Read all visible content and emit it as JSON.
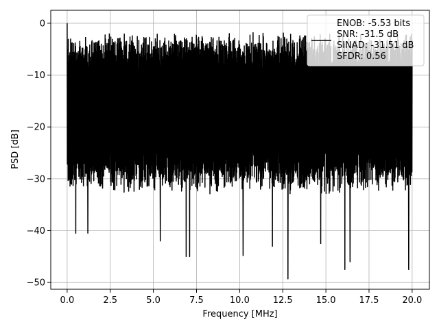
{
  "chart_data": {
    "type": "line",
    "title": "",
    "xlabel": "Frequency [MHz]",
    "ylabel": "PSD [dB]",
    "xlim": [
      -0.95,
      21.0
    ],
    "ylim": [
      -51.3,
      2.5
    ],
    "xticks": [
      0.0,
      2.5,
      5.0,
      7.5,
      10.0,
      12.5,
      15.0,
      17.5,
      20.0
    ],
    "xtick_labels": [
      "0.0",
      "2.5",
      "5.0",
      "7.5",
      "10.0",
      "12.5",
      "15.0",
      "17.5",
      "20.0"
    ],
    "yticks": [
      0,
      -10,
      -20,
      -30,
      -40,
      -50
    ],
    "ytick_labels": [
      "0",
      "−10",
      "−20",
      "−30",
      "−40",
      "−50"
    ],
    "grid": true,
    "legend_position": "top-right",
    "series": [
      {
        "name": "ENOB: -5.53 bits\nSNR: -31.5 dB\nSINAD: -31.51 dB\nSFDR: 0.56",
        "color": "#000000",
        "x_range": [
          0.0,
          20.0
        ],
        "approx_upper_envelope_db": -4,
        "approx_lower_envelope_db": -28,
        "peak": {
          "x": 0.0,
          "y": 0.0
        },
        "deep_dips": [
          {
            "x": 0.5,
            "y": -40.5
          },
          {
            "x": 1.2,
            "y": -40.5
          },
          {
            "x": 5.4,
            "y": -42.0
          },
          {
            "x": 6.9,
            "y": -45.0
          },
          {
            "x": 7.1,
            "y": -45.0
          },
          {
            "x": 10.2,
            "y": -44.8
          },
          {
            "x": 11.9,
            "y": -43.0
          },
          {
            "x": 12.8,
            "y": -49.3
          },
          {
            "x": 14.7,
            "y": -42.5
          },
          {
            "x": 16.1,
            "y": -47.5
          },
          {
            "x": 16.4,
            "y": -46.0
          },
          {
            "x": 19.8,
            "y": -47.5
          }
        ]
      }
    ]
  }
}
